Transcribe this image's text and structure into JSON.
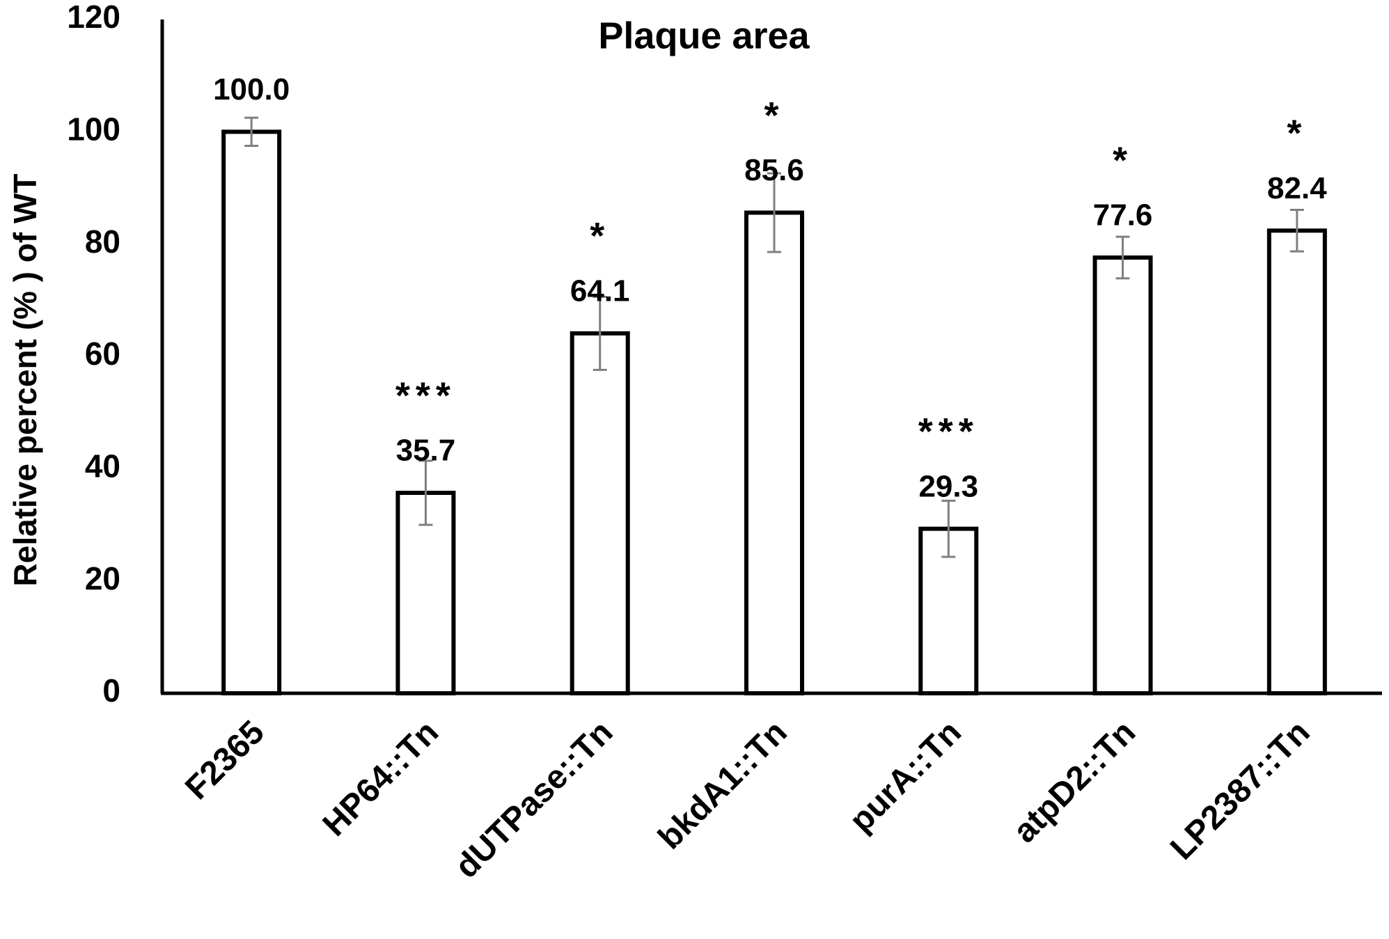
{
  "chart_data": {
    "type": "bar",
    "title": "Plaque area",
    "y_label": "Relative percent (% ) of WT",
    "categories": [
      "F2365",
      "HP64::Tn",
      "dUTPase::Tn",
      "bkdA1::Tn",
      "purA::Tn",
      "atpD2::Tn",
      "LP2387::Tn"
    ],
    "values": [
      100,
      35.7,
      64.1,
      85.6,
      29.3,
      77.6,
      82.4
    ],
    "value_labels": [
      "100.0",
      "35.7",
      "64.1",
      "85.6",
      "29.3",
      "77.6",
      "82.4"
    ],
    "errors": [
      2.5,
      5.7,
      6.5,
      7,
      5,
      3.7,
      3.7
    ],
    "annotations": [
      null,
      "***",
      "*",
      "*",
      "***",
      "*",
      "*"
    ],
    "color": "#ffffff",
    "edge_color": "#000000",
    "error_color": "#7f7f7f",
    "ylim": [
      0,
      120
    ],
    "yticks": [
      0,
      20,
      40,
      60,
      80,
      100,
      120
    ],
    "grid": false
  }
}
